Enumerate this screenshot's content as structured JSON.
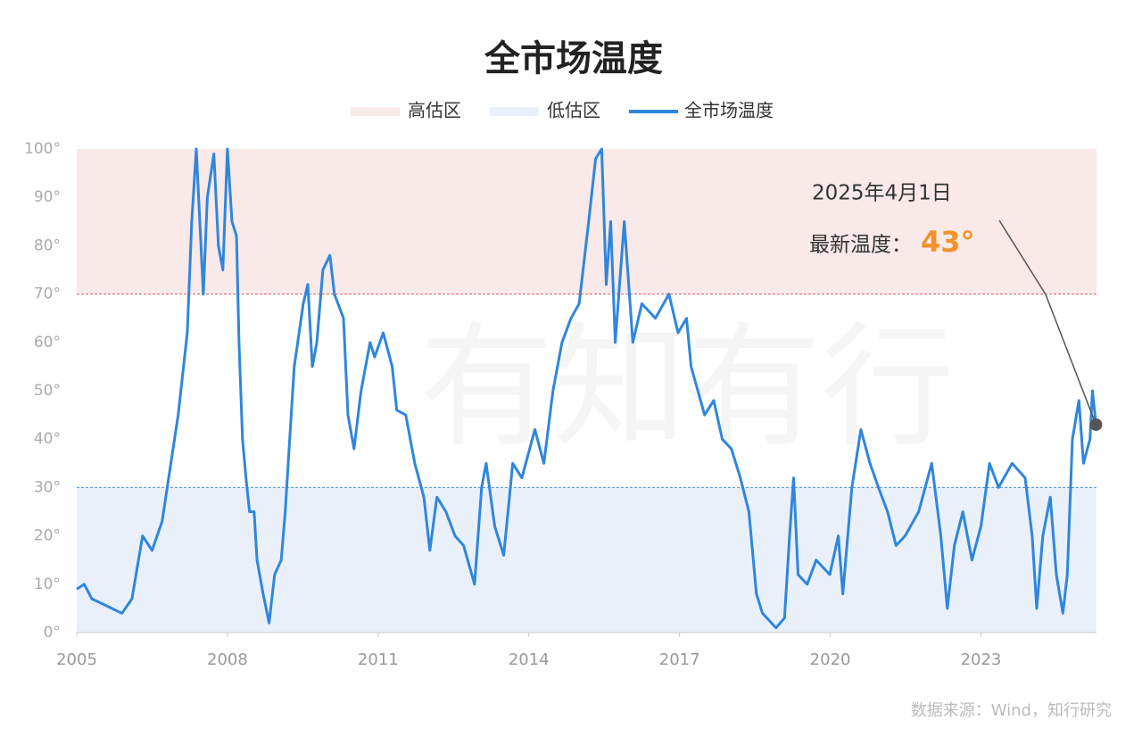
{
  "chart_data": {
    "type": "line",
    "title": "全市场温度",
    "watermark": "有知有行",
    "source": "数据来源：Wind，知行研究",
    "bands": [
      {
        "name": "高估区",
        "range": [
          70,
          100
        ],
        "color": "#f9e9e9",
        "line_color": "#e06060"
      },
      {
        "name": "低估区",
        "range": [
          0,
          30
        ],
        "color": "#e9f0fa",
        "line_color": "#4a90d9"
      }
    ],
    "xlim": [
      2005,
      2025.3
    ],
    "xticks": [
      2005,
      2008,
      2011,
      2014,
      2017,
      2020,
      2023
    ],
    "ylim": [
      0,
      100
    ],
    "yticks": [
      {
        "value": 0,
        "label": "0°"
      },
      {
        "value": 10,
        "label": "10°"
      },
      {
        "value": 20,
        "label": "20°"
      },
      {
        "value": 30,
        "label": "30°"
      },
      {
        "value": 40,
        "label": "40°"
      },
      {
        "value": 50,
        "label": "50°"
      },
      {
        "value": 60,
        "label": "60°"
      },
      {
        "value": 70,
        "label": "70°"
      },
      {
        "value": 80,
        "label": "80°"
      },
      {
        "value": 90,
        "label": "90°"
      },
      {
        "value": 100,
        "label": "100°"
      }
    ],
    "x": [
      2005.0,
      2005.15,
      2005.3,
      2005.5,
      2005.7,
      2005.9,
      2006.1,
      2006.31,
      2006.5,
      2006.7,
      2007.02,
      2007.2,
      2007.29,
      2007.38,
      2007.52,
      2007.6,
      2007.73,
      2007.82,
      2007.91,
      2008.0,
      2008.09,
      2008.18,
      2008.23,
      2008.3,
      2008.37,
      2008.44,
      2008.53,
      2008.59,
      2008.71,
      2008.83,
      2008.94,
      2009.07,
      2009.15,
      2009.24,
      2009.33,
      2009.51,
      2009.6,
      2009.69,
      2009.78,
      2009.9,
      2010.04,
      2010.13,
      2010.31,
      2010.4,
      2010.52,
      2010.66,
      2010.84,
      2010.93,
      2011.1,
      2011.28,
      2011.37,
      2011.55,
      2011.73,
      2011.91,
      2012.03,
      2012.17,
      2012.35,
      2012.53,
      2012.7,
      2012.92,
      2013.06,
      2013.15,
      2013.32,
      2013.5,
      2013.68,
      2013.86,
      2014.12,
      2014.3,
      2014.48,
      2014.66,
      2014.84,
      2015.0,
      2015.19,
      2015.33,
      2015.45,
      2015.54,
      2015.63,
      2015.72,
      2015.9,
      2016.07,
      2016.25,
      2016.52,
      2016.79,
      2016.97,
      2017.14,
      2017.23,
      2017.5,
      2017.68,
      2017.85,
      2018.03,
      2018.21,
      2018.38,
      2018.53,
      2018.65,
      2018.92,
      2019.09,
      2019.19,
      2019.27,
      2019.36,
      2019.54,
      2019.72,
      2019.99,
      2020.16,
      2020.25,
      2020.43,
      2020.61,
      2020.79,
      2020.96,
      2021.14,
      2021.31,
      2021.49,
      2021.76,
      2022.02,
      2022.2,
      2022.33,
      2022.47,
      2022.64,
      2022.82,
      2023.0,
      2023.17,
      2023.35,
      2023.62,
      2023.88,
      2024.02,
      2024.11,
      2024.23,
      2024.38,
      2024.5,
      2024.63,
      2024.72,
      2024.82,
      2024.95,
      2025.04,
      2025.17,
      2025.22,
      2025.29
    ],
    "series": [
      {
        "name": "全市场温度",
        "color": "#2f86dd",
        "values": [
          9,
          10,
          7,
          6,
          5,
          4,
          7,
          20,
          17,
          23,
          45,
          62,
          85,
          100,
          70,
          90,
          99,
          80,
          75,
          100,
          85,
          82,
          60,
          40,
          32,
          25,
          25,
          15,
          8,
          2,
          12,
          15,
          25,
          40,
          55,
          68,
          72,
          55,
          60,
          75,
          78,
          70,
          65,
          45,
          38,
          50,
          60,
          57,
          62,
          55,
          46,
          45,
          35,
          28,
          17,
          28,
          25,
          20,
          18,
          10,
          30,
          35,
          22,
          16,
          35,
          32,
          42,
          35,
          50,
          60,
          65,
          68,
          85,
          98,
          100,
          72,
          85,
          60,
          85,
          60,
          68,
          65,
          70,
          62,
          65,
          55,
          45,
          48,
          40,
          38,
          32,
          25,
          8,
          4,
          1,
          3,
          20,
          32,
          12,
          10,
          15,
          12,
          20,
          8,
          30,
          42,
          35,
          30,
          25,
          18,
          20,
          25,
          35,
          20,
          5,
          18,
          25,
          15,
          22,
          35,
          30,
          35,
          32,
          20,
          5,
          20,
          28,
          12,
          4,
          12,
          40,
          48,
          35,
          40,
          50,
          43
        ]
      }
    ],
    "latest": {
      "date": "2025年4月1日",
      "label": "最新温度：",
      "value": 43,
      "value_label": "43°",
      "color": "#f0932b"
    }
  }
}
